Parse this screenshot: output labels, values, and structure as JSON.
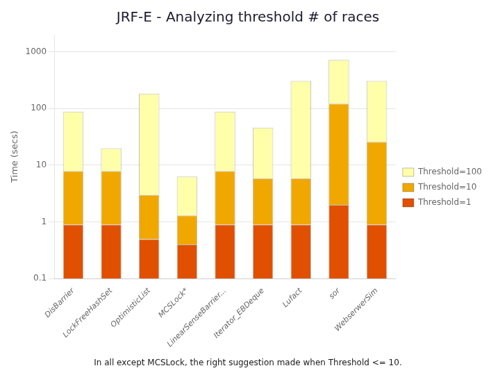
{
  "chart_data": {
    "type": "bar",
    "title": "JRF-E - Analyzing threshold # of races",
    "annotations": [
      "In all except MCSLock, the right suggestion made when Threshold <= 10."
    ],
    "ylabel": "Time (secs)",
    "categories": [
      "DisBarrier",
      "LockFreeHashSet",
      "OptimisticList",
      "MCSLock*",
      "LinearSenseBarrier...",
      "Iterator_EBDeque",
      "Lufact",
      "sor",
      "WebserwerSim"
    ],
    "series": [
      {
        "name": "Threshold=100",
        "color": "#ffffaa",
        "values": [
          80,
          12,
          180,
          5,
          80,
          40,
          300,
          600,
          280
        ]
      },
      {
        "name": "Threshold=10",
        "color": "#f0a800",
        "values": [
          7,
          7,
          2.5,
          0.9,
          7,
          5,
          5,
          120,
          25
        ]
      },
      {
        "name": "Threshold=1",
        "color": "#e05000",
        "values": [
          0.9,
          0.9,
          0.5,
          0.4,
          0.9,
          0.9,
          0.9,
          2.0,
          0.9
        ]
      }
    ],
    "stacked": true,
    "log": "y",
    "ylim": [
      0.1,
      2000
    ],
    "yticks": [
      0.1,
      1,
      10,
      100,
      1000
    ],
    "grid": true,
    "legend": "right"
  }
}
